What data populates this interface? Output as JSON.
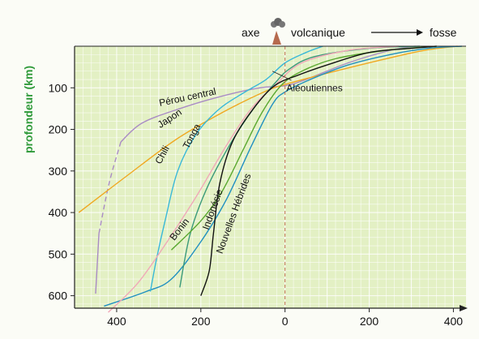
{
  "chart_data": {
    "type": "line",
    "title": "",
    "ylabel": "profondeur (km)",
    "xlabel": "",
    "header": {
      "axe_label": "axe",
      "volcanic_label": "volcanique",
      "fosse_label": "fosse"
    },
    "x_ticks": [
      400,
      200,
      0,
      200,
      400
    ],
    "y_ticks": [
      100,
      200,
      300,
      400,
      500,
      600
    ],
    "xlim": [
      -500,
      430
    ],
    "ylim": [
      0,
      630
    ],
    "grid": true,
    "colors": {
      "plot_bg": "#e3f0c4",
      "ylabel": "#2f9a3a",
      "axis": "#222222",
      "volcano": "#b66a4e",
      "dashed_axis": "#c07050"
    },
    "series": [
      {
        "name": "Pérou central",
        "color": "#a98bc4",
        "points": [
          [
            -450,
            595
          ],
          [
            -442,
            450
          ],
          [
            -418,
            330
          ],
          [
            -390,
            230
          ],
          [
            -340,
            185
          ],
          [
            -250,
            150
          ],
          [
            -150,
            120
          ],
          [
            -60,
            100
          ],
          [
            0,
            95
          ],
          [
            50,
            80
          ],
          [
            150,
            40
          ],
          [
            250,
            10
          ],
          [
            310,
            0
          ]
        ],
        "dashed_range": [
          1,
          3
        ],
        "label_pos": [
          -230,
          130
        ],
        "label_angle": -12
      },
      {
        "name": "Japon",
        "color": "#f0a820",
        "points": [
          [
            -490,
            400
          ],
          [
            -380,
            315
          ],
          [
            -260,
            225
          ],
          [
            -150,
            160
          ],
          [
            -50,
            110
          ],
          [
            0,
            92
          ],
          [
            100,
            65
          ],
          [
            220,
            35
          ],
          [
            330,
            10
          ],
          [
            410,
            0
          ]
        ],
        "label_pos": [
          -270,
          180
        ],
        "label_angle": -33
      },
      {
        "name": "Aléoutiennes",
        "color": "#2090c0",
        "points": [
          [
            -430,
            625
          ],
          [
            -330,
            590
          ],
          [
            -270,
            560
          ],
          [
            -200,
            470
          ],
          [
            -140,
            370
          ],
          [
            -80,
            240
          ],
          [
            -30,
            140
          ],
          [
            0,
            110
          ],
          [
            60,
            80
          ],
          [
            150,
            45
          ],
          [
            250,
            20
          ],
          [
            340,
            5
          ],
          [
            420,
            0
          ]
        ],
        "label_pos": [
          70,
          108
        ],
        "label_angle": 0
      },
      {
        "name": "Chili",
        "color": "#38b8d8",
        "points": [
          [
            -320,
            590
          ],
          [
            -305,
            510
          ],
          [
            -285,
            420
          ],
          [
            -255,
            300
          ],
          [
            -210,
            210
          ],
          [
            -155,
            150
          ],
          [
            -95,
            110
          ],
          [
            -45,
            80
          ],
          [
            0,
            40
          ],
          [
            50,
            15
          ],
          [
            90,
            0
          ]
        ],
        "label_pos": [
          -285,
          265
        ],
        "label_angle": -62
      },
      {
        "name": "Tonga",
        "color": "#3a9a7a",
        "points": [
          [
            -250,
            580
          ],
          [
            -225,
            450
          ],
          [
            -185,
            340
          ],
          [
            -130,
            235
          ],
          [
            -75,
            150
          ],
          [
            -25,
            90
          ],
          [
            10,
            55
          ],
          [
            70,
            25
          ],
          [
            200,
            5
          ],
          [
            320,
            0
          ]
        ],
        "label_pos": [
          -215,
          220
        ],
        "label_angle": -62
      },
      {
        "name": "Bonin",
        "color": "#f0a8b8",
        "points": [
          [
            -420,
            640
          ],
          [
            -350,
            570
          ],
          [
            -280,
            470
          ],
          [
            -210,
            360
          ],
          [
            -140,
            240
          ],
          [
            -80,
            150
          ],
          [
            -20,
            90
          ],
          [
            40,
            40
          ],
          [
            150,
            10
          ],
          [
            270,
            0
          ]
        ],
        "label_pos": [
          -245,
          445
        ],
        "label_angle": -52
      },
      {
        "name": "Indonésie",
        "color": "#5aa830",
        "points": [
          [
            -270,
            490
          ],
          [
            -200,
            420
          ],
          [
            -150,
            350
          ],
          [
            -100,
            250
          ],
          [
            -55,
            160
          ],
          [
            -10,
            95
          ],
          [
            40,
            60
          ],
          [
            120,
            30
          ],
          [
            240,
            10
          ],
          [
            360,
            0
          ]
        ],
        "label_pos": [
          -165,
          395
        ],
        "label_angle": -70
      },
      {
        "name": "Nouvelles Hébrides",
        "color": "#111111",
        "points": [
          [
            -200,
            600
          ],
          [
            -180,
            540
          ],
          [
            -170,
            450
          ],
          [
            -155,
            330
          ],
          [
            -125,
            230
          ],
          [
            -75,
            150
          ],
          [
            -25,
            95
          ],
          [
            30,
            70
          ],
          [
            100,
            45
          ],
          [
            200,
            15
          ],
          [
            300,
            5
          ],
          [
            360,
            0
          ]
        ],
        "label_pos": [
          -115,
          405
        ],
        "label_angle": -70
      }
    ]
  }
}
